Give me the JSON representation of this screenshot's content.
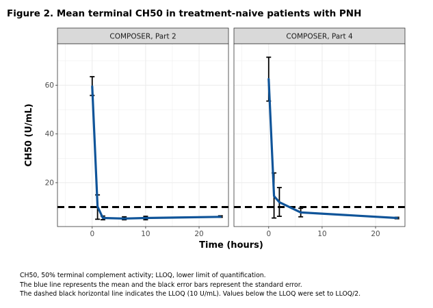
{
  "figure": {
    "title": "Figure 2. Mean terminal CH50 in treatment-naive patients with PNH"
  },
  "chart_data": {
    "type": "line",
    "ylabel": "CH50 (U/mL)",
    "xlabel": "Time (hours)",
    "xlim": [
      -6.5,
      25.5
    ],
    "ylim": [
      2,
      77
    ],
    "x_ticks": [
      0,
      10,
      20
    ],
    "y_ticks": [
      20,
      40,
      60
    ],
    "grid": true,
    "reference_line": {
      "y": 10,
      "style": "dashed",
      "color": "#000000"
    },
    "colors": {
      "mean_line": "#0f5499",
      "error_bars": "#000000",
      "panel_strip": "#d9d9d9",
      "grid": "#ebebeb"
    },
    "panels": [
      {
        "title": "COMPOSER, Part 2",
        "series": {
          "x": [
            0,
            1,
            2,
            6,
            10,
            24
          ],
          "y": [
            59.5,
            10.2,
            5.5,
            5.3,
            5.5,
            6.0
          ],
          "err_low": [
            55.8,
            5.0,
            4.8,
            4.8,
            4.8,
            5.8
          ],
          "err_high": [
            63.5,
            15.0,
            6.3,
            6.0,
            6.2,
            6.4
          ]
        }
      },
      {
        "title": "COMPOSER, Part 4",
        "series": {
          "x": [
            0,
            1,
            2,
            6,
            24
          ],
          "y": [
            62.5,
            14.5,
            12.0,
            7.8,
            5.5
          ],
          "err_low": [
            53.5,
            5.5,
            6.2,
            6.0,
            5.2
          ],
          "err_high": [
            71.5,
            24.0,
            18.0,
            9.5,
            5.8
          ]
        }
      }
    ]
  },
  "footnotes": {
    "line1": "CH50, 50% terminal complement activity; LLOQ, lower limit of quantification.",
    "line2": "The blue line represents the mean and the black error bars represent the standard error.",
    "line3": "The dashed black horizontal line indicates the LLOQ (10 U/mL). Values below the LLOQ were set to LLOQ/2."
  }
}
